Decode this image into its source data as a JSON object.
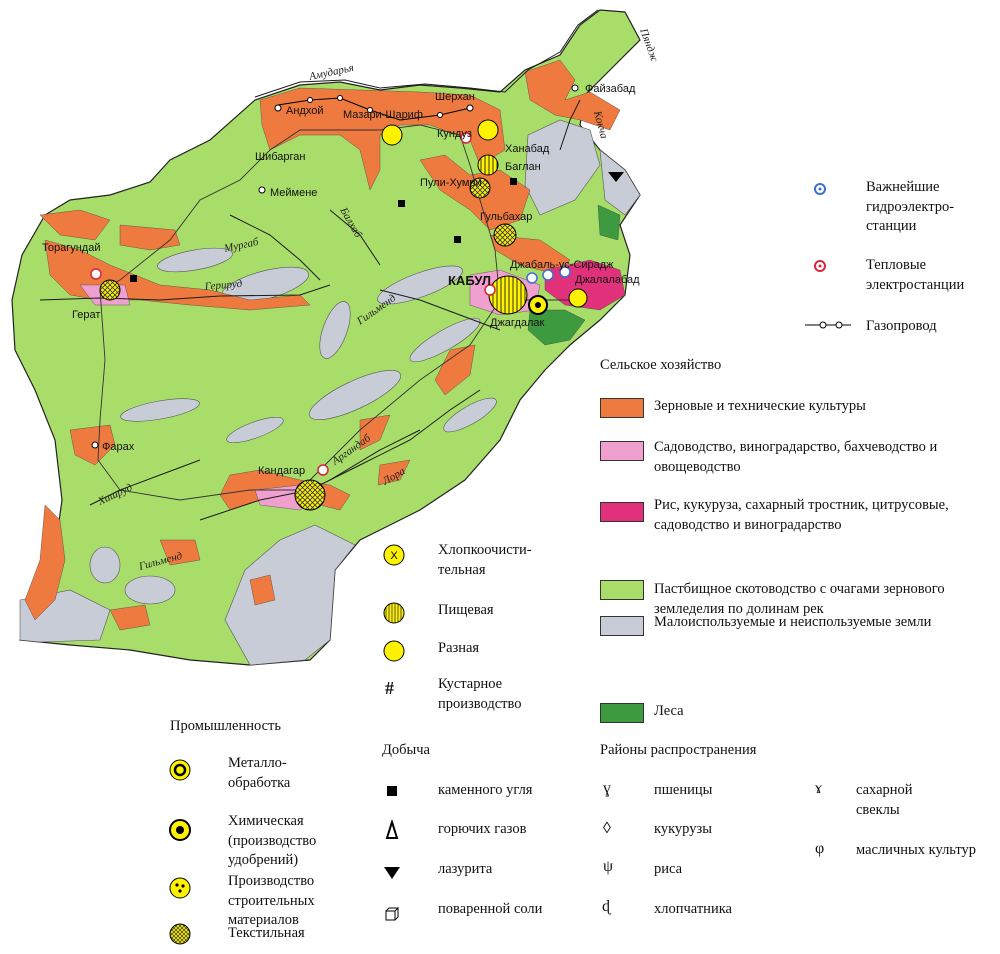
{
  "colors": {
    "pasture": "#a8dd6a",
    "grain": "#ef7a3f",
    "garden": "#f0a0cf",
    "rice": "#e0317a",
    "unused": "#c8ccd6",
    "forest": "#3e9a3e",
    "industry": "#fff200"
  },
  "rivers": {
    "amudarya": "Амударья",
    "pyanj": "Пяндж",
    "kokcha": "Кокча",
    "murgab": "Мургаб",
    "balkh": "Балхаб",
    "harirud": "Герируд",
    "helmand1": "Гильменд",
    "helmand2": "Гильменд",
    "arghandab": "Аргандаб",
    "lora": "Лора",
    "khashrud": "Хашруд"
  },
  "cities": {
    "andkhoy": "Андхой",
    "mazar": "Мазари-Шариф",
    "sherkhan": "Шерхан",
    "kunduz": "Кундуз",
    "faizabad": "Файзабад",
    "khanabad": "Ханабад",
    "baglan": "Баглан",
    "shibargan": "Шибарган",
    "maimana": "Меймене",
    "pulikhumri": "Пули-Хумри",
    "gulbahar": "Гульбахар",
    "torgundi": "Торагундай",
    "herat": "Герат",
    "kabul": "КАБУЛ",
    "jabal": "Джабаль-ус-Сирадж",
    "jalalabad": "Джалалабад",
    "jagdalak": "Джагдалак",
    "farah": "Фарах",
    "kandahar": "Кандагар"
  },
  "legend": {
    "top": {
      "hydro": "Важнейшие гидроэлектро-станции",
      "thermal": "Тепловые электростанции",
      "gas": "Газопровод"
    },
    "agriculture": {
      "title": "Сельское хозяйство",
      "items": [
        "Зерновые и технические культуры",
        "Садоводство, виноградарство, бахчеводство и овощеводство",
        "Рис, кукуруза, сахарный тростник, цитрусовые, садоводство и виноградарство",
        "Пастбищное скотоводство с очагами зернового земледелия по долинам рек",
        "Малоиспользуемые и неиспользуемые земли",
        "Леса"
      ]
    },
    "industry": {
      "title": "Промышленность",
      "items": [
        "Металло-обработка",
        "Химическая (производство удобрений)",
        "Производство строительных материалов",
        "Текстильная"
      ]
    },
    "industry2": {
      "items": [
        "Хлопкоочисти-тельная",
        "Пищевая",
        "Разная",
        "Кустарное производство"
      ]
    },
    "mining": {
      "title": "Добыча",
      "items": [
        "каменного угля",
        "горючих газов",
        "лазурита",
        "поваренной соли"
      ]
    },
    "crops": {
      "title": "Районы распространения",
      "items": [
        "пшеницы",
        "кукурузы",
        "риса",
        "хлопчатника",
        "сахарной свеклы",
        "масличных культур"
      ]
    }
  }
}
